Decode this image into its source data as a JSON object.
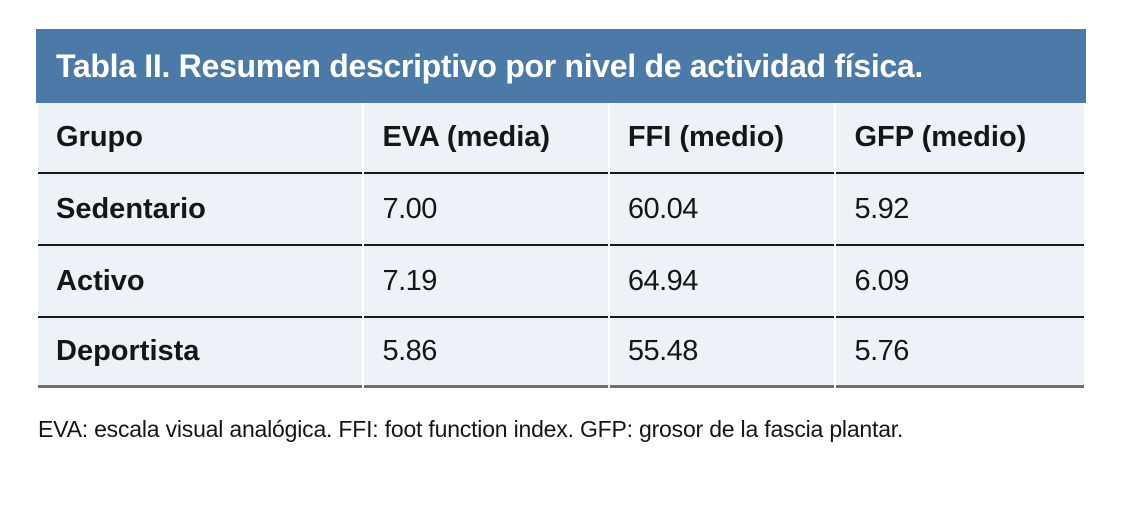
{
  "table": {
    "title": "Tabla II. Resumen descriptivo por nivel de actividad física.",
    "columns": [
      "Grupo",
      "EVA (media)",
      "FFI (medio)",
      "GFP (medio)"
    ],
    "rows": [
      {
        "grupo": "Sedentario",
        "eva": "7.00",
        "ffi": "60.04",
        "gfp": "5.92"
      },
      {
        "grupo": "Activo",
        "eva": "7.19",
        "ffi": "64.94",
        "gfp": "6.09"
      },
      {
        "grupo": "Deportista",
        "eva": "5.86",
        "ffi": "55.48",
        "gfp": "5.76"
      }
    ],
    "footnote": "EVA: escala visual analógica. FFI: foot function index. GFP: grosor de la fascia plantar."
  },
  "colors": {
    "title_bar_bg": "#4c7aa8",
    "title_text": "#ffffff",
    "row_bg": "#edf1f8",
    "row_divider": "#1a1a1a",
    "bottom_border": "#6f6f6f",
    "body_text": "#161616"
  },
  "chart_data": {
    "type": "table",
    "title": "Tabla II. Resumen descriptivo por nivel de actividad física.",
    "columns": [
      "Grupo",
      "EVA (media)",
      "FFI (medio)",
      "GFP (medio)"
    ],
    "rows": [
      [
        "Sedentario",
        7.0,
        60.04,
        5.92
      ],
      [
        "Activo",
        7.19,
        64.94,
        6.09
      ],
      [
        "Deportista",
        5.86,
        55.48,
        5.76
      ]
    ],
    "footnote": "EVA: escala visual analógica. FFI: foot function index. GFP: grosor de la fascia plantar."
  }
}
